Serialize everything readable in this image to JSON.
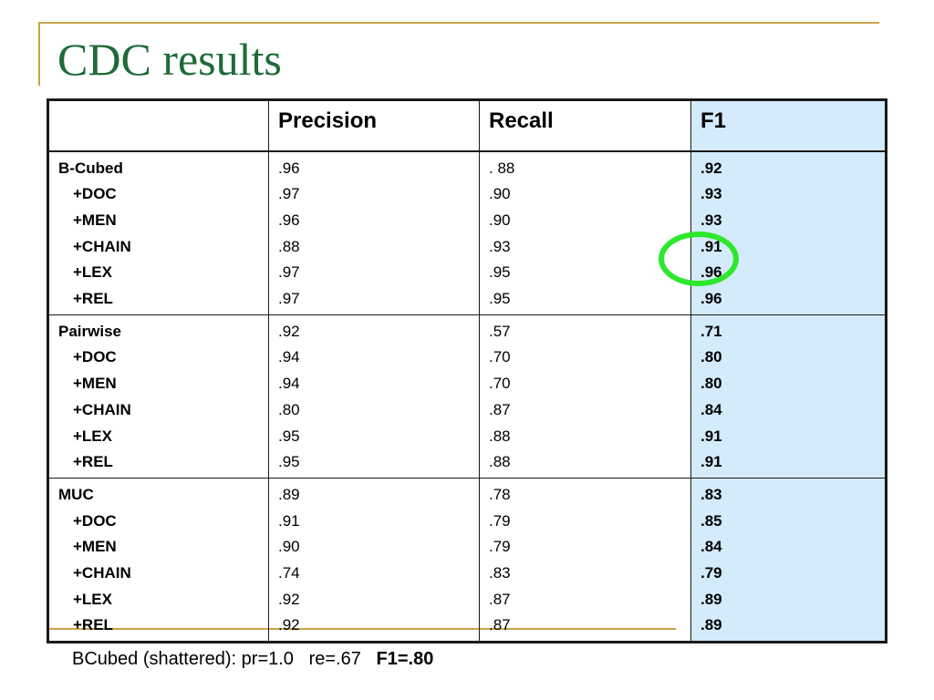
{
  "slide": {
    "title": "CDC results",
    "table": {
      "headers": [
        "",
        "Precision",
        "Recall",
        "F1"
      ],
      "groups": [
        {
          "rows": [
            {
              "label": "B-Cubed",
              "precision": ".96",
              "recall": ". 88",
              "f1": ".92"
            },
            {
              "label": "+DOC",
              "precision": ".97",
              "recall": ".90",
              "f1": ".93"
            },
            {
              "label": "+MEN",
              "precision": ".96",
              "recall": ".90",
              "f1": ".93"
            },
            {
              "label": "+CHAIN",
              "precision": ".88",
              "recall": ".93",
              "f1": ".91"
            },
            {
              "label": "+LEX",
              "precision": ".97",
              "recall": ".95",
              "f1": ".96"
            },
            {
              "label": "+REL",
              "precision": ".97",
              "recall": ".95",
              "f1": ".96"
            }
          ]
        },
        {
          "rows": [
            {
              "label": "Pairwise",
              "precision": ".92",
              "recall": ".57",
              "f1": ".71"
            },
            {
              "label": "+DOC",
              "precision": ".94",
              "recall": ".70",
              "f1": ".80"
            },
            {
              "label": "+MEN",
              "precision": ".94",
              "recall": ".70",
              "f1": ".80"
            },
            {
              "label": "+CHAIN",
              "precision": ".80",
              "recall": ".87",
              "f1": ".84"
            },
            {
              "label": "+LEX",
              "precision": ".95",
              "recall": ".88",
              "f1": ".91"
            },
            {
              "label": "+REL",
              "precision": ".95",
              "recall": ".88",
              "f1": ".91"
            }
          ]
        },
        {
          "rows": [
            {
              "label": "MUC",
              "precision": ".89",
              "recall": ".78",
              "f1": ".83"
            },
            {
              "label": "+DOC",
              "precision": ".91",
              "recall": ".79",
              "f1": ".85"
            },
            {
              "label": "+MEN",
              "precision": ".90",
              "recall": ".79",
              "f1": ".84"
            },
            {
              "label": "+CHAIN",
              "precision": ".74",
              "recall": ".83",
              "f1": ".79"
            },
            {
              "label": "+LEX",
              "precision": ".92",
              "recall": ".87",
              "f1": ".89"
            },
            {
              "label": "+REL",
              "precision": ".92",
              "recall": ".87",
              "f1": ".89"
            }
          ]
        }
      ]
    },
    "footnote": {
      "text": "BCubed (shattered): pr=1.0   re=.67   ",
      "highlight": "F1=.80"
    },
    "colors": {
      "title": "#1f6b38",
      "accent_line": "#c9a54a",
      "f1_column": "#d4ebfb",
      "circle": "#2de82d"
    }
  }
}
